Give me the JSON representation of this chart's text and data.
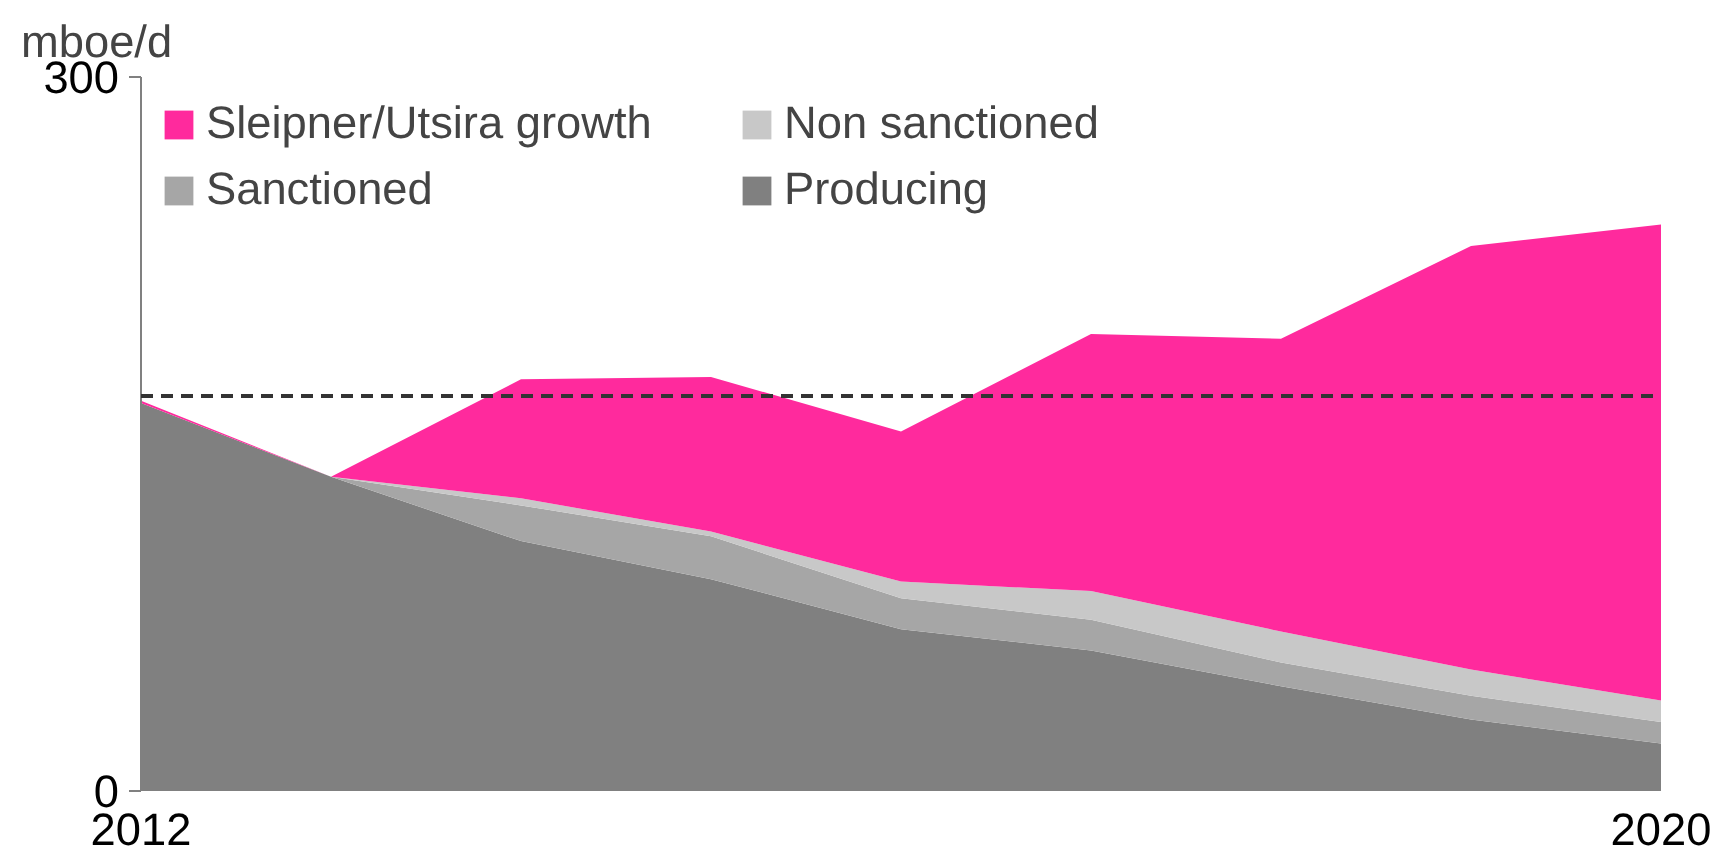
{
  "chart_data": {
    "type": "area",
    "stacked": true,
    "ylabel": "mboe/d",
    "x": [
      2012,
      2013,
      2014,
      2015,
      2016,
      2017,
      2018,
      2019,
      2020
    ],
    "series": [
      {
        "name": "Producing",
        "color": "#808080",
        "values": [
          163,
          132,
          105,
          89,
          68,
          59,
          44,
          30,
          20
        ]
      },
      {
        "name": "Sanctioned",
        "color": "#a6a6a6",
        "values": [
          0,
          0,
          15,
          18,
          13,
          13,
          10,
          10,
          9
        ]
      },
      {
        "name": "Non sanctioned",
        "color": "#c8c8c8",
        "values": [
          0,
          0,
          3,
          2,
          7,
          12,
          13,
          11,
          9
        ]
      },
      {
        "name": "Sleipner/Utsira growth",
        "color": "#ff2a9d",
        "values": [
          1,
          0,
          50,
          65,
          63,
          108,
          123,
          178,
          200
        ]
      }
    ],
    "xlim": [
      2012,
      2020
    ],
    "xticks": [
      2012,
      2020
    ],
    "ylim": [
      0,
      300
    ],
    "yticks": [
      0,
      300
    ],
    "ref_lines": [
      {
        "axis": "y",
        "value": 166,
        "line_style": "dashed",
        "color": "#333333"
      }
    ],
    "legend": "top"
  }
}
